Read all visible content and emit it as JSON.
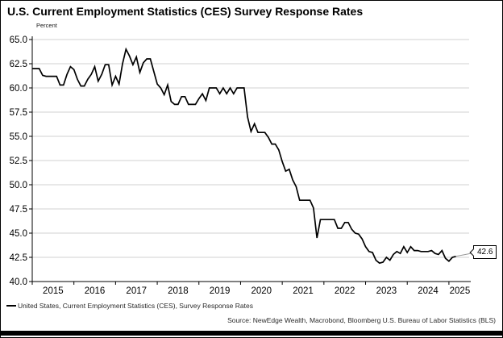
{
  "title": "U.S. Current Employment Statistics (CES) Survey Response Rates",
  "y_axis_unit_label": "Percent",
  "legend": {
    "swatch_color": "#000000",
    "label": "United States, Current Employment Statistics (CES), Survey Response Rates"
  },
  "source": "Source: NewEdge Wealth, Macrobond, Bloomberg U.S. Bureau of Labor Statistics (BLS)",
  "end_label": "42.6",
  "colors": {
    "line": "#000000",
    "grid": "#d2d2d2",
    "axis": "#000000",
    "leader": "#9a9a9a",
    "text": "#000000"
  },
  "chart_data": {
    "type": "line",
    "title": "U.S. Current Employment Statistics (CES) Survey Response Rates",
    "xlabel": "",
    "ylabel": "Percent",
    "ylim": [
      40.0,
      65.0
    ],
    "yticks": [
      40.0,
      42.5,
      45.0,
      47.5,
      50.0,
      52.5,
      55.0,
      57.5,
      60.0,
      62.5,
      65.0
    ],
    "x_years": [
      2015,
      2016,
      2017,
      2018,
      2019,
      2020,
      2021,
      2022,
      2023,
      2024,
      2025
    ],
    "xlim": [
      2015.0,
      2025.52
    ],
    "grid": true,
    "legend_position": "bottom-left",
    "start_year": 2015,
    "points_per_year": 12,
    "last_value": 42.6,
    "series": [
      {
        "name": "United States, Current Employment Statistics (CES), Survey Response Rates",
        "values": [
          62.0,
          62.0,
          62.0,
          61.3,
          61.2,
          61.2,
          61.2,
          61.2,
          60.3,
          60.3,
          61.4,
          62.2,
          61.9,
          60.9,
          60.2,
          60.2,
          60.9,
          61.4,
          62.2,
          60.7,
          61.4,
          62.4,
          62.4,
          60.3,
          61.2,
          60.4,
          62.5,
          64.0,
          63.3,
          62.4,
          63.2,
          61.6,
          62.6,
          63.0,
          63.0,
          61.7,
          60.4,
          60.0,
          59.3,
          60.3,
          58.6,
          58.3,
          58.3,
          59.1,
          59.1,
          58.3,
          58.3,
          58.3,
          58.9,
          59.4,
          58.7,
          60.0,
          60.0,
          60.0,
          59.4,
          60.0,
          59.4,
          60.0,
          59.4,
          60.0,
          60.0,
          60.0,
          57.0,
          55.5,
          56.3,
          55.4,
          55.4,
          55.4,
          54.9,
          54.2,
          54.2,
          53.6,
          52.4,
          51.4,
          51.6,
          50.5,
          49.8,
          48.4,
          48.4,
          48.4,
          48.4,
          47.6,
          44.5,
          46.4,
          46.4,
          46.4,
          46.4,
          46.4,
          45.5,
          45.5,
          46.1,
          46.1,
          45.4,
          45.0,
          44.9,
          44.4,
          43.6,
          43.1,
          43.0,
          42.2,
          41.9,
          42.0,
          42.5,
          42.2,
          42.8,
          43.1,
          42.9,
          43.6,
          43.0,
          43.6,
          43.2,
          43.2,
          43.1,
          43.1,
          43.1,
          43.2,
          42.9,
          42.8,
          43.2,
          42.4,
          42.1,
          42.5,
          42.6
        ]
      }
    ]
  }
}
